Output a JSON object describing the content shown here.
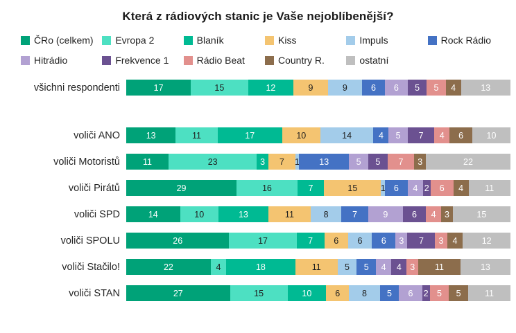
{
  "title": "Která z rádiových stanic je Vaše nejoblíbenější?",
  "chart_data": {
    "type": "bar",
    "orientation": "horizontal",
    "stacked": true,
    "unit": "percent share",
    "legend_position": "top",
    "legend_split": 6,
    "axes_visible": false,
    "stations": [
      {
        "name": "ČRo (celkem)",
        "color": "#00A278",
        "label_color": "#ffffff"
      },
      {
        "name": "Evropa 2",
        "color": "#4DE0C2",
        "label_color": "#1f1f1f"
      },
      {
        "name": "Blaník",
        "color": "#00BA93",
        "label_color": "#ffffff"
      },
      {
        "name": "Kiss",
        "color": "#F4C471",
        "label_color": "#1f1f1f"
      },
      {
        "name": "Impuls",
        "color": "#A3CCEA",
        "label_color": "#1f1f1f"
      },
      {
        "name": "Rock Rádio",
        "color": "#4472C4",
        "label_color": "#ffffff"
      },
      {
        "name": "Hitrádio",
        "color": "#B2A1D2",
        "label_color": "#ffffff"
      },
      {
        "name": "Frekvence 1",
        "color": "#6B5191",
        "label_color": "#ffffff"
      },
      {
        "name": "Rádio Beat",
        "color": "#E2908D",
        "label_color": "#ffffff"
      },
      {
        "name": "Country R.",
        "color": "#8C6D4C",
        "label_color": "#ffffff"
      },
      {
        "name": "ostatní",
        "color": "#BFBFBF",
        "label_color": "#ffffff"
      }
    ],
    "rows": [
      {
        "category": "všichni respondenti",
        "values": [
          17,
          15,
          12,
          9,
          9,
          6,
          6,
          5,
          5,
          4,
          13
        ],
        "gap_after": true
      },
      {
        "category": "voliči ANO",
        "values": [
          13,
          11,
          17,
          10,
          14,
          4,
          5,
          7,
          4,
          6,
          10
        ]
      },
      {
        "category": "voliči Motoristů",
        "values": [
          11,
          23,
          3,
          7,
          1,
          13,
          5,
          5,
          7,
          3,
          22
        ]
      },
      {
        "category": "voliči Pirátů",
        "values": [
          29,
          16,
          7,
          15,
          1,
          6,
          4,
          2,
          6,
          4,
          11
        ]
      },
      {
        "category": "voliči SPD",
        "values": [
          14,
          10,
          13,
          11,
          8,
          7,
          9,
          6,
          4,
          3,
          15
        ]
      },
      {
        "category": "voliči SPOLU",
        "values": [
          26,
          17,
          7,
          6,
          6,
          6,
          3,
          7,
          3,
          4,
          12
        ]
      },
      {
        "category": "voliči Stačilo!",
        "values": [
          22,
          4,
          18,
          11,
          5,
          5,
          4,
          4,
          3,
          11,
          13
        ]
      },
      {
        "category": "voliči STAN",
        "values": [
          27,
          15,
          10,
          6,
          8,
          5,
          6,
          2,
          5,
          5,
          11
        ]
      }
    ]
  }
}
